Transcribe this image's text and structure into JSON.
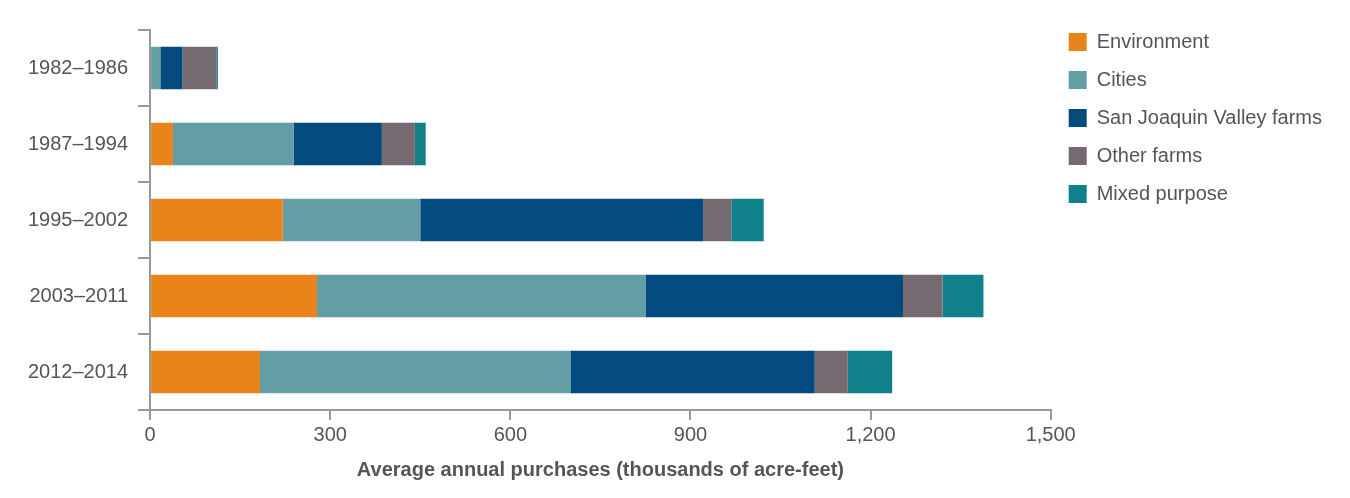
{
  "chart_data": {
    "type": "bar",
    "orientation": "horizontal",
    "stacked": true,
    "xlabel": "Average annual purchases (thousands of acre-feet)",
    "categories": [
      "1982–1986",
      "1987–1994",
      "1995–2002",
      "2003–2011",
      "2012–2014"
    ],
    "series": [
      {
        "name": "Environment",
        "color": "#e8841a",
        "values": [
          0,
          38,
          221,
          278,
          183
        ]
      },
      {
        "name": "Cities",
        "color": "#639ea4",
        "values": [
          17,
          201,
          229,
          547,
          517
        ]
      },
      {
        "name": "San Joaquin Valley farms",
        "color": "#034a7e",
        "values": [
          37,
          147,
          471,
          429,
          407
        ]
      },
      {
        "name": "Other farms",
        "color": "#766a72",
        "values": [
          57,
          55,
          47,
          66,
          55
        ]
      },
      {
        "name": "Mixed purpose",
        "color": "#10808a",
        "values": [
          2,
          18,
          54,
          68,
          74
        ]
      }
    ],
    "xlim": [
      0,
      1500
    ],
    "xticks": [
      0,
      300,
      600,
      900,
      {
        "value": 1200,
        "label": "1,200"
      },
      {
        "value": 1500,
        "label": "1,500"
      }
    ],
    "grid": false,
    "legend": "top right"
  }
}
